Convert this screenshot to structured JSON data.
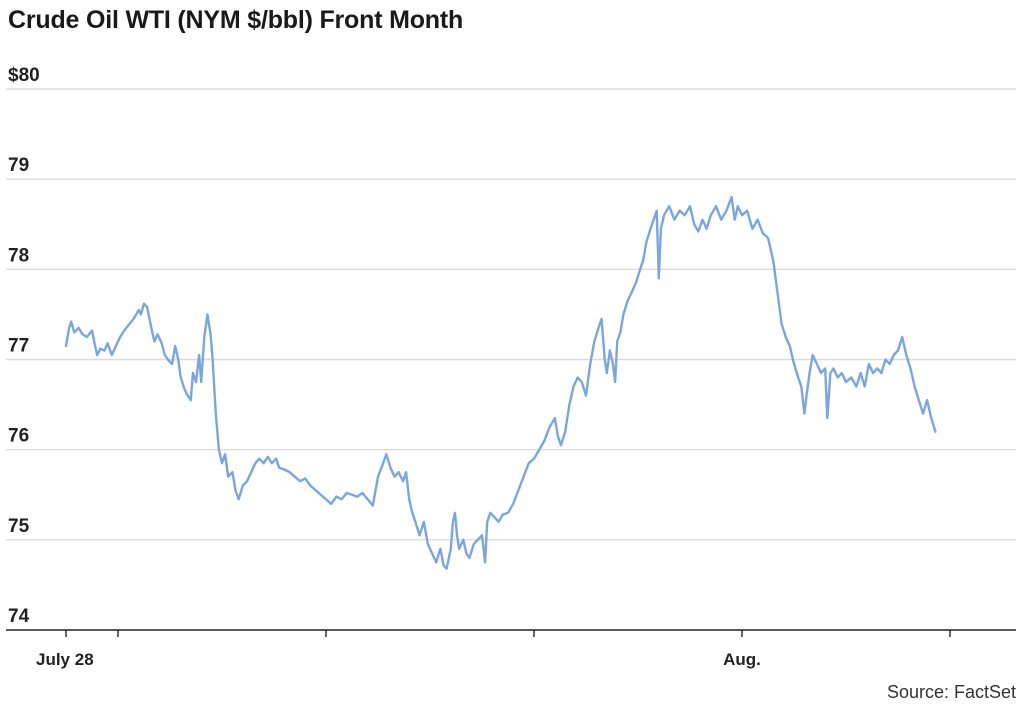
{
  "chart_data": {
    "type": "line",
    "title": "Crude Oil WTI (NYM $/bbl) Front Month",
    "source": "Source: FactSet",
    "ylim": [
      74,
      80
    ],
    "y_ticks": [
      {
        "value": 80,
        "label": "$80"
      },
      {
        "value": 79,
        "label": "79"
      },
      {
        "value": 78,
        "label": "78"
      },
      {
        "value": 77,
        "label": "77"
      },
      {
        "value": 76,
        "label": "76"
      },
      {
        "value": 75,
        "label": "75"
      },
      {
        "value": 74,
        "label": "74"
      }
    ],
    "x_range": [
      0,
      9.1
    ],
    "x_ticks": [
      {
        "value": 0,
        "label": "July 28"
      },
      {
        "value": 0.5,
        "label": ""
      },
      {
        "value": 2.5,
        "label": ""
      },
      {
        "value": 4.5,
        "label": ""
      },
      {
        "value": 6.5,
        "label": "Aug."
      },
      {
        "value": 8.5,
        "label": ""
      }
    ],
    "grid": true,
    "line_color": "#7ba6dc",
    "series": [
      {
        "points": [
          [
            0.0,
            77.15
          ],
          [
            0.03,
            77.35
          ],
          [
            0.05,
            77.42
          ],
          [
            0.08,
            77.3
          ],
          [
            0.12,
            77.35
          ],
          [
            0.16,
            77.28
          ],
          [
            0.2,
            77.25
          ],
          [
            0.25,
            77.32
          ],
          [
            0.28,
            77.15
          ],
          [
            0.3,
            77.05
          ],
          [
            0.33,
            77.12
          ],
          [
            0.37,
            77.1
          ],
          [
            0.4,
            77.18
          ],
          [
            0.44,
            77.05
          ],
          [
            0.48,
            77.15
          ],
          [
            0.52,
            77.25
          ],
          [
            0.56,
            77.32
          ],
          [
            0.6,
            77.38
          ],
          [
            0.65,
            77.45
          ],
          [
            0.7,
            77.55
          ],
          [
            0.72,
            77.5
          ],
          [
            0.75,
            77.62
          ],
          [
            0.78,
            77.58
          ],
          [
            0.82,
            77.35
          ],
          [
            0.85,
            77.2
          ],
          [
            0.88,
            77.28
          ],
          [
            0.92,
            77.18
          ],
          [
            0.95,
            77.05
          ],
          [
            0.98,
            77.0
          ],
          [
            1.02,
            76.95
          ],
          [
            1.05,
            77.15
          ],
          [
            1.08,
            77.0
          ],
          [
            1.1,
            76.82
          ],
          [
            1.13,
            76.7
          ],
          [
            1.16,
            76.62
          ],
          [
            1.2,
            76.55
          ],
          [
            1.22,
            76.85
          ],
          [
            1.25,
            76.75
          ],
          [
            1.28,
            77.05
          ],
          [
            1.3,
            76.75
          ],
          [
            1.33,
            77.25
          ],
          [
            1.36,
            77.5
          ],
          [
            1.39,
            77.28
          ],
          [
            1.41,
            77.0
          ],
          [
            1.44,
            76.4
          ],
          [
            1.47,
            76.0
          ],
          [
            1.5,
            75.85
          ],
          [
            1.53,
            75.95
          ],
          [
            1.56,
            75.7
          ],
          [
            1.6,
            75.75
          ],
          [
            1.63,
            75.55
          ],
          [
            1.66,
            75.45
          ],
          [
            1.7,
            75.6
          ],
          [
            1.74,
            75.65
          ],
          [
            1.78,
            75.75
          ],
          [
            1.82,
            75.85
          ],
          [
            1.86,
            75.9
          ],
          [
            1.9,
            75.85
          ],
          [
            1.94,
            75.92
          ],
          [
            1.98,
            75.85
          ],
          [
            2.02,
            75.9
          ],
          [
            2.05,
            75.8
          ],
          [
            2.1,
            75.78
          ],
          [
            2.15,
            75.75
          ],
          [
            2.2,
            75.7
          ],
          [
            2.25,
            75.65
          ],
          [
            2.3,
            75.68
          ],
          [
            2.35,
            75.6
          ],
          [
            2.4,
            75.55
          ],
          [
            2.45,
            75.5
          ],
          [
            2.5,
            75.45
          ],
          [
            2.55,
            75.4
          ],
          [
            2.6,
            75.48
          ],
          [
            2.65,
            75.45
          ],
          [
            2.7,
            75.52
          ],
          [
            2.75,
            75.5
          ],
          [
            2.8,
            75.48
          ],
          [
            2.85,
            75.52
          ],
          [
            2.9,
            75.45
          ],
          [
            2.95,
            75.38
          ],
          [
            3.0,
            75.7
          ],
          [
            3.05,
            75.85
          ],
          [
            3.08,
            75.95
          ],
          [
            3.12,
            75.8
          ],
          [
            3.16,
            75.7
          ],
          [
            3.2,
            75.75
          ],
          [
            3.24,
            75.65
          ],
          [
            3.27,
            75.75
          ],
          [
            3.3,
            75.45
          ],
          [
            3.33,
            75.3
          ],
          [
            3.36,
            75.2
          ],
          [
            3.4,
            75.05
          ],
          [
            3.44,
            75.2
          ],
          [
            3.48,
            74.95
          ],
          [
            3.52,
            74.85
          ],
          [
            3.56,
            74.75
          ],
          [
            3.6,
            74.9
          ],
          [
            3.63,
            74.72
          ],
          [
            3.66,
            74.68
          ],
          [
            3.7,
            74.9
          ],
          [
            3.72,
            75.2
          ],
          [
            3.74,
            75.3
          ],
          [
            3.76,
            75.05
          ],
          [
            3.78,
            74.9
          ],
          [
            3.82,
            75.0
          ],
          [
            3.85,
            74.85
          ],
          [
            3.88,
            74.8
          ],
          [
            3.92,
            74.95
          ],
          [
            3.96,
            75.0
          ],
          [
            4.0,
            75.05
          ],
          [
            4.03,
            74.75
          ],
          [
            4.05,
            75.2
          ],
          [
            4.08,
            75.3
          ],
          [
            4.12,
            75.25
          ],
          [
            4.16,
            75.2
          ],
          [
            4.2,
            75.28
          ],
          [
            4.25,
            75.3
          ],
          [
            4.3,
            75.4
          ],
          [
            4.35,
            75.55
          ],
          [
            4.4,
            75.7
          ],
          [
            4.45,
            75.85
          ],
          [
            4.5,
            75.9
          ],
          [
            4.55,
            76.0
          ],
          [
            4.6,
            76.1
          ],
          [
            4.65,
            76.25
          ],
          [
            4.7,
            76.35
          ],
          [
            4.73,
            76.15
          ],
          [
            4.76,
            76.05
          ],
          [
            4.8,
            76.2
          ],
          [
            4.84,
            76.5
          ],
          [
            4.88,
            76.7
          ],
          [
            4.92,
            76.8
          ],
          [
            4.96,
            76.75
          ],
          [
            5.0,
            76.6
          ],
          [
            5.04,
            76.95
          ],
          [
            5.08,
            77.2
          ],
          [
            5.12,
            77.35
          ],
          [
            5.15,
            77.45
          ],
          [
            5.18,
            77.0
          ],
          [
            5.2,
            76.85
          ],
          [
            5.23,
            77.1
          ],
          [
            5.26,
            76.95
          ],
          [
            5.28,
            76.75
          ],
          [
            5.3,
            77.2
          ],
          [
            5.33,
            77.3
          ],
          [
            5.36,
            77.5
          ],
          [
            5.4,
            77.65
          ],
          [
            5.44,
            77.75
          ],
          [
            5.48,
            77.85
          ],
          [
            5.52,
            78.0
          ],
          [
            5.55,
            78.1
          ],
          [
            5.58,
            78.3
          ],
          [
            5.62,
            78.45
          ],
          [
            5.65,
            78.55
          ],
          [
            5.68,
            78.65
          ],
          [
            5.7,
            77.9
          ],
          [
            5.72,
            78.45
          ],
          [
            5.75,
            78.6
          ],
          [
            5.8,
            78.7
          ],
          [
            5.85,
            78.55
          ],
          [
            5.9,
            78.65
          ],
          [
            5.95,
            78.6
          ],
          [
            6.0,
            78.7
          ],
          [
            6.04,
            78.5
          ],
          [
            6.08,
            78.42
          ],
          [
            6.12,
            78.55
          ],
          [
            6.16,
            78.45
          ],
          [
            6.2,
            78.6
          ],
          [
            6.25,
            78.7
          ],
          [
            6.3,
            78.55
          ],
          [
            6.35,
            78.65
          ],
          [
            6.4,
            78.8
          ],
          [
            6.43,
            78.55
          ],
          [
            6.46,
            78.7
          ],
          [
            6.5,
            78.6
          ],
          [
            6.55,
            78.65
          ],
          [
            6.6,
            78.45
          ],
          [
            6.65,
            78.55
          ],
          [
            6.7,
            78.4
          ],
          [
            6.75,
            78.35
          ],
          [
            6.8,
            78.1
          ],
          [
            6.84,
            77.75
          ],
          [
            6.88,
            77.4
          ],
          [
            6.92,
            77.25
          ],
          [
            6.96,
            77.15
          ],
          [
            7.0,
            76.95
          ],
          [
            7.04,
            76.8
          ],
          [
            7.07,
            76.7
          ],
          [
            7.1,
            76.4
          ],
          [
            7.12,
            76.6
          ],
          [
            7.15,
            76.85
          ],
          [
            7.18,
            77.05
          ],
          [
            7.22,
            76.95
          ],
          [
            7.26,
            76.85
          ],
          [
            7.3,
            76.9
          ],
          [
            7.32,
            76.35
          ],
          [
            7.35,
            76.85
          ],
          [
            7.38,
            76.9
          ],
          [
            7.42,
            76.8
          ],
          [
            7.46,
            76.85
          ],
          [
            7.5,
            76.75
          ],
          [
            7.55,
            76.8
          ],
          [
            7.6,
            76.7
          ],
          [
            7.64,
            76.85
          ],
          [
            7.68,
            76.7
          ],
          [
            7.72,
            76.95
          ],
          [
            7.76,
            76.85
          ],
          [
            7.8,
            76.9
          ],
          [
            7.84,
            76.85
          ],
          [
            7.88,
            77.0
          ],
          [
            7.92,
            76.95
          ],
          [
            7.96,
            77.05
          ],
          [
            8.0,
            77.1
          ],
          [
            8.04,
            77.25
          ],
          [
            8.08,
            77.05
          ],
          [
            8.12,
            76.9
          ],
          [
            8.16,
            76.7
          ],
          [
            8.2,
            76.55
          ],
          [
            8.24,
            76.4
          ],
          [
            8.28,
            76.55
          ],
          [
            8.32,
            76.35
          ],
          [
            8.36,
            76.2
          ]
        ]
      }
    ]
  }
}
